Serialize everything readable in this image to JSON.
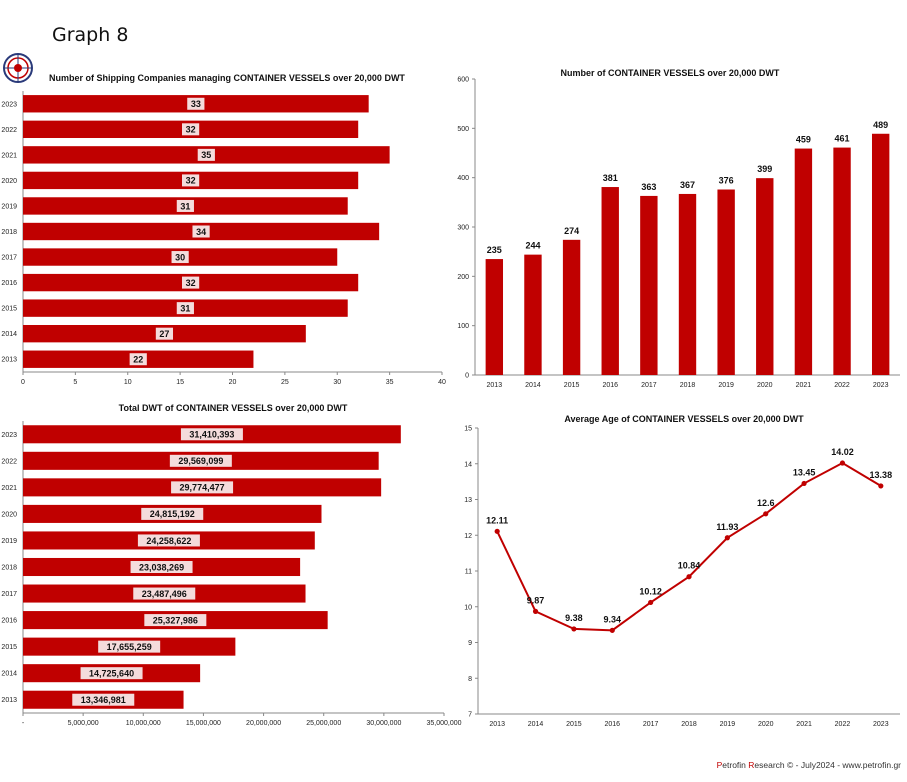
{
  "page_title": "Graph 8",
  "footer": {
    "p1": "P",
    "t1": "etrofin ",
    "p2": "R",
    "t2": "esearch © - July2024 - www.petrofin.gr"
  },
  "colors": {
    "bar": "#c00000",
    "label_bg": "#f4dcdc",
    "axis": "#888888"
  },
  "logo": {
    "icon": "petrofin-logo-icon"
  },
  "chart_data": [
    {
      "id": "companies",
      "type": "bar",
      "orientation": "horizontal",
      "title": "Number of Shipping Companies managing CONTAINER VESSELS over 20,000 DWT",
      "categories": [
        "2023",
        "2022",
        "2021",
        "2020",
        "2019",
        "2018",
        "2017",
        "2016",
        "2015",
        "2014",
        "2013"
      ],
      "values": [
        33,
        32,
        35,
        32,
        31,
        34,
        30,
        32,
        31,
        27,
        22
      ],
      "value_labels": [
        "33",
        "32",
        "35",
        "32",
        "31",
        "34",
        "30",
        "32",
        "31",
        "27",
        "22"
      ],
      "xlim": [
        0,
        40
      ],
      "xticks": [
        "0",
        "5",
        "10",
        "15",
        "20",
        "25",
        "30",
        "35",
        "40"
      ],
      "grid": false
    },
    {
      "id": "vessels",
      "type": "bar",
      "orientation": "vertical",
      "title": "Number of CONTAINER  VESSELS over 20,000 DWT",
      "categories": [
        "2013",
        "2014",
        "2015",
        "2016",
        "2017",
        "2018",
        "2019",
        "2020",
        "2021",
        "2022",
        "2023"
      ],
      "values": [
        235,
        244,
        274,
        381,
        363,
        367,
        376,
        399,
        459,
        461,
        489
      ],
      "value_labels": [
        "235",
        "244",
        "274",
        "381",
        "363",
        "367",
        "376",
        "399",
        "459",
        "461",
        "489"
      ],
      "ylim": [
        0,
        600
      ],
      "yticks": [
        "0",
        "100",
        "200",
        "300",
        "400",
        "500",
        "600"
      ],
      "grid": false
    },
    {
      "id": "dwt",
      "type": "bar",
      "orientation": "horizontal",
      "title": "Total DWT of CONTAINER VESSELS over 20,000 DWT",
      "categories": [
        "2023",
        "2022",
        "2021",
        "2020",
        "2019",
        "2018",
        "2017",
        "2016",
        "2015",
        "2014",
        "2013"
      ],
      "values": [
        31410393,
        29569099,
        29774477,
        24815192,
        24258622,
        23038269,
        23487496,
        25327986,
        17655259,
        14725640,
        13346981
      ],
      "value_labels": [
        "31,410,393",
        "29,569,099",
        "29,774,477",
        "24,815,192",
        "24,258,622",
        "23,038,269",
        "23,487,496",
        "25,327,986",
        "17,655,259",
        "14,725,640",
        "13,346,981"
      ],
      "xlim": [
        0,
        35000000
      ],
      "xticks": [
        "-",
        "5,000,000",
        "10,000,000",
        "15,000,000",
        "20,000,000",
        "25,000,000",
        "30,000,000",
        "35,000,000"
      ],
      "grid": false
    },
    {
      "id": "age",
      "type": "line",
      "title": "Average Age of CONTAINER VESSELS over 20,000 DWT",
      "categories": [
        "2013",
        "2014",
        "2015",
        "2016",
        "2017",
        "2018",
        "2019",
        "2020",
        "2021",
        "2022",
        "2023"
      ],
      "values": [
        12.11,
        9.87,
        9.38,
        9.34,
        10.12,
        10.84,
        11.93,
        12.6,
        13.45,
        14.02,
        13.38
      ],
      "value_labels": [
        "12.11",
        "9.87",
        "9.38",
        "9.34",
        "10.12",
        "10.84",
        "11.93",
        "12.6",
        "13.45",
        "14.02",
        "13.38"
      ],
      "ylim": [
        7,
        15
      ],
      "yticks": [
        "7",
        "8",
        "9",
        "10",
        "11",
        "12",
        "13",
        "14",
        "15"
      ],
      "grid": false
    }
  ]
}
